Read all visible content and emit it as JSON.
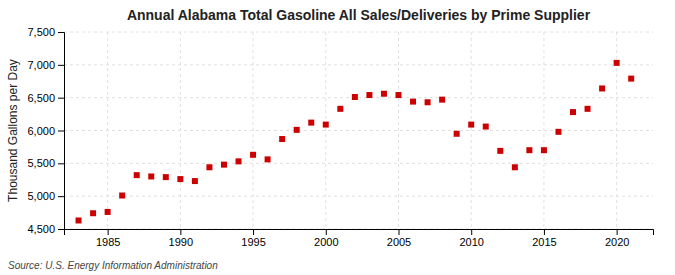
{
  "chart_data": {
    "type": "scatter",
    "title": "Annual Alabama Total Gasoline All Sales/Deliveries by Prime Supplier",
    "ylabel": "Thousand Gallons per Day",
    "annotation": "Source: U.S. Energy Information Administration",
    "x": [
      1983,
      1984,
      1985,
      1986,
      1987,
      1988,
      1989,
      1990,
      1991,
      1992,
      1993,
      1994,
      1995,
      1996,
      1997,
      1998,
      1999,
      2000,
      2001,
      2002,
      2003,
      2004,
      2005,
      2006,
      2007,
      2008,
      2009,
      2010,
      2011,
      2012,
      2013,
      2014,
      2015,
      2016,
      2017,
      2018,
      2019,
      2020,
      2021
    ],
    "values": [
      4630,
      4740,
      4760,
      5010,
      5320,
      5300,
      5290,
      5260,
      5230,
      5440,
      5480,
      5530,
      5630,
      5560,
      5870,
      6010,
      6120,
      6090,
      6330,
      6510,
      6540,
      6560,
      6540,
      6440,
      6430,
      6470,
      5950,
      6090,
      6060,
      5690,
      5440,
      5700,
      5700,
      5980,
      6280,
      6330,
      6640,
      7030,
      6790
    ],
    "color": "#cc0000",
    "marker": "square",
    "xlim": [
      1982,
      2022.5
    ],
    "xticks": [
      1985,
      1990,
      1995,
      2000,
      2005,
      2010,
      2015,
      2020
    ],
    "ylim": [
      4500,
      7500
    ],
    "yticks": [
      {
        "value": 4500,
        "label": "4,500"
      },
      {
        "value": 5000,
        "label": "5,000"
      },
      {
        "value": 5500,
        "label": "5,500"
      },
      {
        "value": 6000,
        "label": "6,000"
      },
      {
        "value": 6500,
        "label": "6,500"
      },
      {
        "value": 7000,
        "label": "7,000"
      },
      {
        "value": 7500,
        "label": "7,500"
      }
    ],
    "grid": true
  }
}
